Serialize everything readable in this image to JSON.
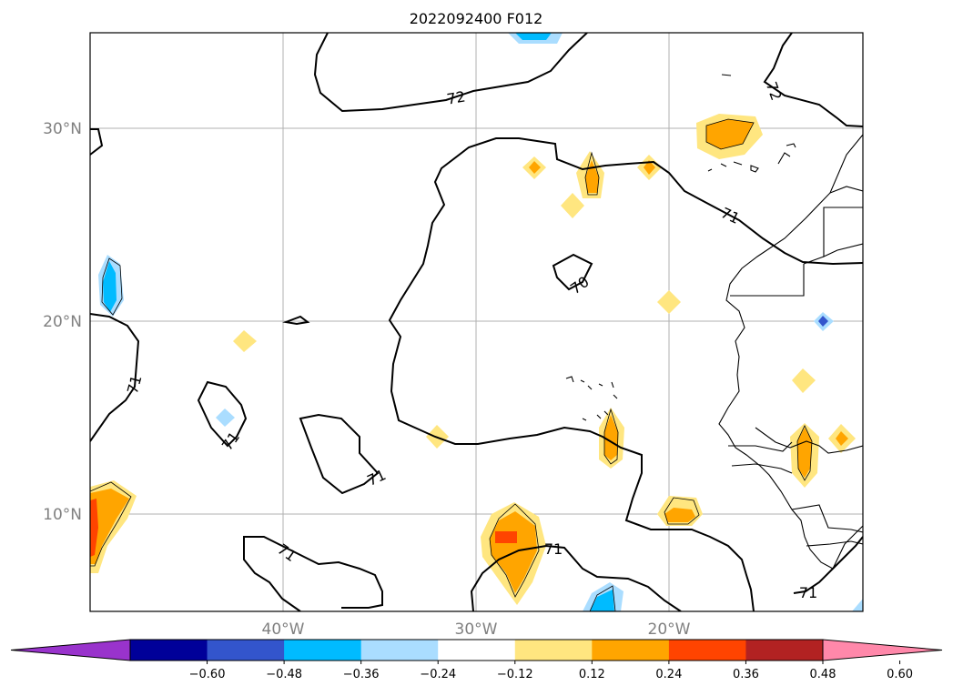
{
  "title": "2022092400 F012",
  "map": {
    "lat_labels": [
      "30°N",
      "20°N",
      "10°N"
    ],
    "lon_labels": [
      "40°W",
      "30°W",
      "20°W"
    ],
    "contour_labels": [
      "72",
      "72",
      "71",
      "70",
      "71",
      "71",
      "71",
      "71",
      "71",
      "71"
    ]
  },
  "colorbar": {
    "ticks": [
      "−0.60",
      "−0.48",
      "−0.36",
      "−0.24",
      "−0.12",
      "0.12",
      "0.24",
      "0.36",
      "0.48",
      "0.60"
    ],
    "colors": [
      "#9933cc",
      "#000099",
      "#3355cc",
      "#00bbff",
      "#aaddff",
      "#ffffff",
      "#ffe680",
      "#ffa500",
      "#ff4400",
      "#b22222",
      "#ff88aa"
    ]
  },
  "colors": {
    "low_blue": "#aaddff",
    "mid_blue": "#00bbff",
    "low_yellow": "#ffe680",
    "orange": "#ffa500",
    "red_orange": "#ff4400"
  }
}
